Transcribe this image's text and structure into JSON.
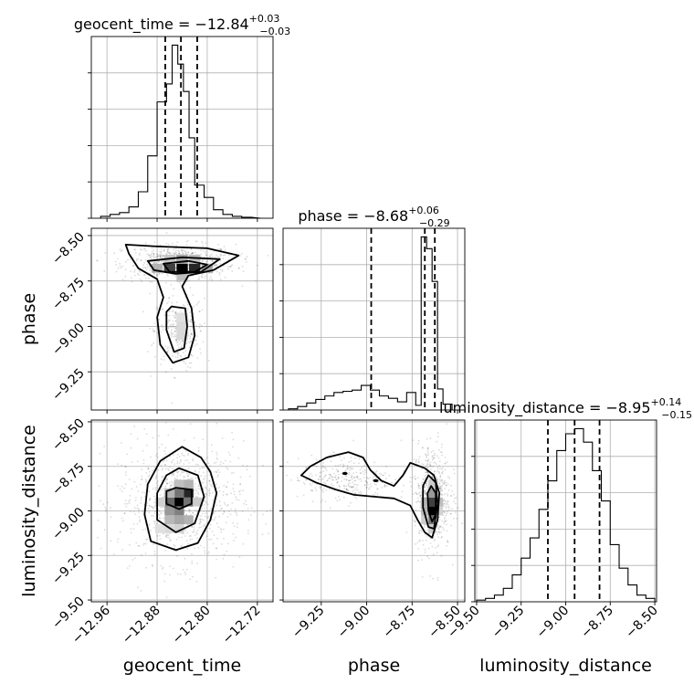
{
  "chart_data": {
    "type": "corner",
    "parameters": [
      {
        "name": "geocent_time",
        "title": {
          "prefix": "geocent_time = ",
          "value": "−12.84",
          "upper": "+0.03",
          "lower": "−0.03"
        },
        "range": [
          -12.985,
          -12.695
        ],
        "ticks": [
          -12.96,
          -12.88,
          -12.8,
          -12.72
        ],
        "tick_labels": [
          "−12.96",
          "−12.88",
          "−12.80",
          "−12.72"
        ],
        "quantiles": [
          -12.867,
          -12.842,
          -12.816
        ],
        "hist_edges": [
          -12.97,
          -12.955,
          -12.94,
          -12.925,
          -12.91,
          -12.895,
          -12.88,
          -12.865,
          -12.856,
          -12.847,
          -12.838,
          -12.829,
          -12.82,
          -12.805,
          -12.79,
          -12.775,
          -12.76,
          -12.745,
          -12.73,
          -12.715
        ],
        "hist_counts": [
          2,
          4,
          6,
          12,
          28,
          66,
          123,
          142,
          183,
          163,
          134,
          85,
          35,
          22,
          9,
          4,
          2,
          1
        ]
      },
      {
        "name": "phase",
        "title": {
          "prefix": "phase = ",
          "value": "−8.68",
          "upper": "+0.06",
          "lower": "−0.29"
        },
        "range": [
          -9.46,
          -8.46
        ],
        "ticks": [
          -9.25,
          -9.0,
          -8.75,
          -8.5
        ],
        "tick_labels": [
          "−9.25",
          "−9.00",
          "−8.75",
          "−8.50"
        ],
        "quantiles": [
          -8.975,
          -8.68,
          -8.625
        ],
        "hist_edges": [
          -9.43,
          -9.38,
          -9.33,
          -9.28,
          -9.23,
          -9.18,
          -9.13,
          -9.08,
          -9.03,
          -8.98,
          -8.93,
          -8.88,
          -8.83,
          -8.78,
          -8.73,
          -8.7,
          -8.67,
          -8.64,
          -8.61,
          -8.58,
          -8.53
        ],
        "hist_counts": [
          1,
          3,
          6,
          9,
          12,
          15,
          16,
          17,
          21,
          17,
          12,
          10,
          7,
          15,
          4,
          148,
          138,
          110,
          18,
          5
        ]
      },
      {
        "name": "luminosity_distance",
        "title": {
          "prefix": "luminosity_distance = ",
          "value": "−8.95",
          "upper": "+0.14",
          "lower": "−0.15"
        },
        "range": [
          -9.51,
          -8.49
        ],
        "ticks": [
          -9.5,
          -9.25,
          -9.0,
          -8.75,
          -8.5
        ],
        "tick_labels": [
          "−9.50",
          "−9.25",
          "−9.00",
          "−8.75",
          "−8.50"
        ],
        "quantiles": [
          -9.1,
          -8.95,
          -8.81
        ],
        "hist_edges": [
          -9.5,
          -9.45,
          -9.4,
          -9.35,
          -9.3,
          -9.25,
          -9.2,
          -9.15,
          -9.1,
          -9.05,
          -9.0,
          -8.95,
          -8.9,
          -8.85,
          -8.8,
          -8.75,
          -8.7,
          -8.65,
          -8.6,
          -8.55,
          -8.5
        ],
        "hist_counts": [
          1,
          2,
          4,
          8,
          16,
          26,
          38,
          55,
          72,
          90,
          100,
          103,
          95,
          78,
          60,
          34,
          20,
          10,
          4,
          2
        ]
      }
    ],
    "pairs": [
      {
        "x": "geocent_time",
        "y": "phase",
        "density_cells": [
          {
            "x": -12.86,
            "y": -8.68,
            "w": 0.018,
            "h": 0.05,
            "v": 0.75
          },
          {
            "x": -12.84,
            "y": -8.68,
            "w": 0.018,
            "h": 0.05,
            "v": 1.0
          },
          {
            "x": -12.82,
            "y": -8.68,
            "w": 0.018,
            "h": 0.05,
            "v": 0.85
          },
          {
            "x": -12.8,
            "y": -8.68,
            "w": 0.018,
            "h": 0.05,
            "v": 0.35
          },
          {
            "x": -12.88,
            "y": -8.68,
            "w": 0.018,
            "h": 0.05,
            "v": 0.3
          },
          {
            "x": -12.84,
            "y": -8.63,
            "w": 0.018,
            "h": 0.05,
            "v": 0.35
          },
          {
            "x": -12.84,
            "y": -8.73,
            "w": 0.018,
            "h": 0.05,
            "v": 0.25
          },
          {
            "x": -12.86,
            "y": -8.63,
            "w": 0.018,
            "h": 0.05,
            "v": 0.22
          },
          {
            "x": -12.82,
            "y": -8.63,
            "w": 0.018,
            "h": 0.05,
            "v": 0.25
          },
          {
            "x": -12.84,
            "y": -9.0,
            "w": 0.018,
            "h": 0.05,
            "v": 0.15
          },
          {
            "x": -12.84,
            "y": -9.05,
            "w": 0.018,
            "h": 0.05,
            "v": 0.15
          },
          {
            "x": -12.84,
            "y": -8.95,
            "w": 0.018,
            "h": 0.05,
            "v": 0.12
          }
        ],
        "contours": [
          [
            [
              -12.93,
              -8.55
            ],
            [
              -12.88,
              -8.56
            ],
            [
              -12.8,
              -8.57
            ],
            [
              -12.75,
              -8.61
            ],
            [
              -12.79,
              -8.69
            ],
            [
              -12.83,
              -8.72
            ],
            [
              -12.84,
              -8.78
            ],
            [
              -12.825,
              -8.9
            ],
            [
              -12.82,
              -9.05
            ],
            [
              -12.83,
              -9.17
            ],
            [
              -12.855,
              -9.2
            ],
            [
              -12.875,
              -9.1
            ],
            [
              -12.88,
              -8.95
            ],
            [
              -12.87,
              -8.84
            ],
            [
              -12.88,
              -8.74
            ],
            [
              -12.91,
              -8.68
            ],
            [
              -12.925,
              -8.6
            ]
          ],
          [
            [
              -12.895,
              -8.64
            ],
            [
              -12.84,
              -8.62
            ],
            [
              -12.78,
              -8.63
            ],
            [
              -12.81,
              -8.7
            ],
            [
              -12.85,
              -8.71
            ],
            [
              -12.885,
              -8.69
            ]
          ],
          [
            [
              -12.857,
              -8.89
            ],
            [
              -12.835,
              -8.9
            ],
            [
              -12.832,
              -9.0
            ],
            [
              -12.837,
              -9.12
            ],
            [
              -12.853,
              -9.14
            ],
            [
              -12.865,
              -9.02
            ],
            [
              -12.865,
              -8.92
            ]
          ],
          [
            [
              -12.87,
              -8.655
            ],
            [
              -12.83,
              -8.64
            ],
            [
              -12.8,
              -8.66
            ],
            [
              -12.82,
              -8.7
            ],
            [
              -12.86,
              -8.7
            ]
          ]
        ],
        "points": {
          "center": [
            -12.845,
            -8.72
          ],
          "spread": [
            0.045,
            0.14
          ],
          "count": 900
        }
      },
      {
        "x": "geocent_time",
        "y": "luminosity_distance",
        "density_cells": [
          {
            "x": -12.845,
            "y": -8.95,
            "w": 0.016,
            "h": 0.05,
            "v": 1.0
          },
          {
            "x": -12.83,
            "y": -8.9,
            "w": 0.016,
            "h": 0.05,
            "v": 0.85
          },
          {
            "x": -12.86,
            "y": -8.95,
            "w": 0.016,
            "h": 0.05,
            "v": 0.6
          },
          {
            "x": -12.83,
            "y": -8.95,
            "w": 0.016,
            "h": 0.05,
            "v": 0.55
          },
          {
            "x": -12.845,
            "y": -9.0,
            "w": 0.016,
            "h": 0.05,
            "v": 0.5
          },
          {
            "x": -12.86,
            "y": -9.0,
            "w": 0.016,
            "h": 0.05,
            "v": 0.4
          },
          {
            "x": -12.845,
            "y": -8.9,
            "w": 0.016,
            "h": 0.05,
            "v": 0.55
          },
          {
            "x": -12.83,
            "y": -9.05,
            "w": 0.016,
            "h": 0.05,
            "v": 0.3
          },
          {
            "x": -12.845,
            "y": -9.05,
            "w": 0.016,
            "h": 0.05,
            "v": 0.35
          },
          {
            "x": -12.86,
            "y": -9.05,
            "w": 0.016,
            "h": 0.05,
            "v": 0.28
          },
          {
            "x": -12.86,
            "y": -8.9,
            "w": 0.016,
            "h": 0.05,
            "v": 0.3
          },
          {
            "x": -12.83,
            "y": -8.85,
            "w": 0.016,
            "h": 0.05,
            "v": 0.3
          },
          {
            "x": -12.845,
            "y": -8.85,
            "w": 0.016,
            "h": 0.05,
            "v": 0.25
          },
          {
            "x": -12.875,
            "y": -8.95,
            "w": 0.016,
            "h": 0.05,
            "v": 0.18
          },
          {
            "x": -12.815,
            "y": -8.95,
            "w": 0.016,
            "h": 0.05,
            "v": 0.2
          },
          {
            "x": -12.845,
            "y": -9.1,
            "w": 0.016,
            "h": 0.05,
            "v": 0.18
          },
          {
            "x": -12.86,
            "y": -9.1,
            "w": 0.016,
            "h": 0.05,
            "v": 0.15
          },
          {
            "x": -12.875,
            "y": -9.1,
            "w": 0.016,
            "h": 0.05,
            "v": 0.12
          }
        ],
        "contours": [
          [
            [
              -12.84,
              -8.64
            ],
            [
              -12.81,
              -8.7
            ],
            [
              -12.795,
              -8.78
            ],
            [
              -12.785,
              -8.9
            ],
            [
              -12.795,
              -9.05
            ],
            [
              -12.815,
              -9.18
            ],
            [
              -12.85,
              -9.22
            ],
            [
              -12.89,
              -9.17
            ],
            [
              -12.9,
              -9.02
            ],
            [
              -12.895,
              -8.85
            ],
            [
              -12.875,
              -8.72
            ]
          ],
          [
            [
              -12.845,
              -8.76
            ],
            [
              -12.815,
              -8.8
            ],
            [
              -12.805,
              -8.92
            ],
            [
              -12.82,
              -9.07
            ],
            [
              -12.85,
              -9.12
            ],
            [
              -12.88,
              -9.05
            ],
            [
              -12.88,
              -8.9
            ],
            [
              -12.865,
              -8.8
            ]
          ],
          [
            [
              -12.85,
              -8.87
            ],
            [
              -12.825,
              -8.88
            ],
            [
              -12.825,
              -8.96
            ],
            [
              -12.845,
              -8.99
            ],
            [
              -12.865,
              -8.96
            ],
            [
              -12.865,
              -8.89
            ]
          ]
        ],
        "points": {
          "center": [
            -12.842,
            -8.95
          ],
          "spread": [
            0.05,
            0.17
          ],
          "count": 900
        }
      },
      {
        "x": "phase",
        "y": "luminosity_distance",
        "density_cells": [
          {
            "x": -8.64,
            "y": -9.0,
            "w": 0.04,
            "h": 0.05,
            "v": 1.0
          },
          {
            "x": -8.64,
            "y": -8.95,
            "w": 0.04,
            "h": 0.05,
            "v": 0.75
          },
          {
            "x": -8.64,
            "y": -9.05,
            "w": 0.04,
            "h": 0.05,
            "v": 0.55
          },
          {
            "x": -8.64,
            "y": -8.9,
            "w": 0.04,
            "h": 0.05,
            "v": 0.4
          },
          {
            "x": -8.68,
            "y": -8.95,
            "w": 0.04,
            "h": 0.05,
            "v": 0.3
          },
          {
            "x": -8.68,
            "y": -9.0,
            "w": 0.04,
            "h": 0.05,
            "v": 0.3
          },
          {
            "x": -8.6,
            "y": -8.95,
            "w": 0.04,
            "h": 0.05,
            "v": 0.25
          },
          {
            "x": -8.64,
            "y": -9.1,
            "w": 0.04,
            "h": 0.05,
            "v": 0.2
          },
          {
            "x": -8.68,
            "y": -9.05,
            "w": 0.04,
            "h": 0.05,
            "v": 0.2
          },
          {
            "x": -8.64,
            "y": -8.85,
            "w": 0.04,
            "h": 0.05,
            "v": 0.2
          },
          {
            "x": -8.6,
            "y": -9.0,
            "w": 0.04,
            "h": 0.05,
            "v": 0.18
          }
        ],
        "contours": [
          [
            [
              -9.36,
              -8.8
            ],
            [
              -9.31,
              -8.75
            ],
            [
              -9.22,
              -8.7
            ],
            [
              -9.1,
              -8.67
            ],
            [
              -9.02,
              -8.7
            ],
            [
              -8.98,
              -8.77
            ],
            [
              -8.92,
              -8.83
            ],
            [
              -8.85,
              -8.86
            ],
            [
              -8.8,
              -8.8
            ],
            [
              -8.76,
              -8.73
            ],
            [
              -8.68,
              -8.76
            ],
            [
              -8.63,
              -8.8
            ],
            [
              -8.6,
              -8.9
            ],
            [
              -8.61,
              -9.05
            ],
            [
              -8.64,
              -9.15
            ],
            [
              -8.68,
              -9.12
            ],
            [
              -8.72,
              -9.05
            ],
            [
              -8.76,
              -8.97
            ],
            [
              -8.85,
              -8.93
            ],
            [
              -8.96,
              -8.92
            ],
            [
              -9.07,
              -8.91
            ],
            [
              -9.17,
              -8.88
            ],
            [
              -9.28,
              -8.84
            ]
          ],
          [
            [
              -8.66,
              -8.8
            ],
            [
              -8.62,
              -8.84
            ],
            [
              -8.61,
              -8.96
            ],
            [
              -8.63,
              -9.1
            ],
            [
              -8.66,
              -9.09
            ],
            [
              -8.69,
              -8.98
            ],
            [
              -8.69,
              -8.86
            ]
          ],
          [
            [
              -8.645,
              -8.86
            ],
            [
              -8.62,
              -8.9
            ],
            [
              -8.62,
              -9.02
            ],
            [
              -8.64,
              -9.06
            ],
            [
              -8.66,
              -9.0
            ],
            [
              -8.665,
              -8.9
            ]
          ]
        ],
        "marks": [
          {
            "x": -8.95,
            "y": -8.83
          },
          {
            "x": -9.12,
            "y": -8.79
          }
        ],
        "points": {
          "center": [
            -8.72,
            -8.92
          ],
          "spread": [
            0.18,
            0.15
          ],
          "count": 900
        }
      }
    ]
  }
}
